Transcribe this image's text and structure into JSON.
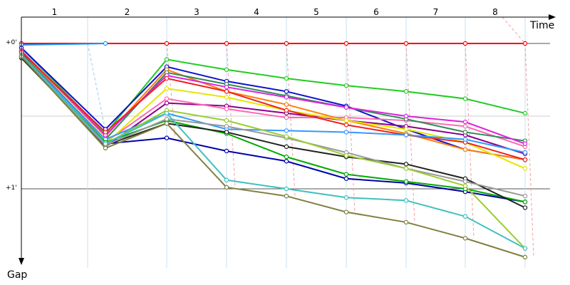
{
  "chart_data": {
    "type": "line",
    "title": "",
    "xlabel": "Time",
    "ylabel": "Gap",
    "laps": [
      "1",
      "2",
      "3",
      "4",
      "5",
      "6",
      "7",
      "8"
    ],
    "x": [
      0,
      1,
      2,
      3,
      4,
      5,
      6,
      7,
      8
    ],
    "y_ticks": [
      {
        "value": 0,
        "label": "+0'"
      },
      {
        "value": 1,
        "label": "+1'"
      }
    ],
    "ylim": [
      -0.2,
      1.5
    ],
    "grid": true,
    "series": [
      {
        "color": "#ff0000",
        "values": [
          0.0,
          null,
          0.0,
          0.0,
          0.0,
          0.0,
          0.0,
          0.0,
          0.0
        ]
      },
      {
        "color": "#1e90ff",
        "values": [
          0.01,
          0.0,
          null,
          null,
          null,
          null,
          null,
          null,
          null
        ]
      },
      {
        "color": "#22cc22",
        "values": [
          0.03,
          0.62,
          0.11,
          0.18,
          0.24,
          0.29,
          0.33,
          0.38,
          0.48
        ]
      },
      {
        "color": "#1010cc",
        "values": [
          0.03,
          0.59,
          0.16,
          0.26,
          0.33,
          0.43,
          0.59,
          0.73,
          0.8
        ]
      },
      {
        "color": "#ff7f0e",
        "values": [
          0.05,
          0.64,
          0.18,
          0.33,
          0.42,
          0.53,
          0.62,
          0.73,
          0.8
        ]
      },
      {
        "color": "#8b008b",
        "values": [
          0.06,
          0.71,
          0.41,
          0.43,
          0.48,
          0.53,
          0.57,
          0.63,
          0.76
        ]
      },
      {
        "color": "#ff69b4",
        "values": [
          0.05,
          0.68,
          0.38,
          0.45,
          0.51,
          0.51,
          0.53,
          0.57,
          0.71
        ]
      },
      {
        "color": "#e6e600",
        "values": [
          0.06,
          0.69,
          0.31,
          0.37,
          0.46,
          0.53,
          0.59,
          0.68,
          0.86
        ]
      },
      {
        "color": "#2e8b57",
        "values": [
          0.07,
          0.66,
          0.2,
          0.28,
          0.36,
          0.44,
          0.52,
          0.61,
          0.67
        ]
      },
      {
        "color": "#dd22dd",
        "values": [
          0.05,
          0.63,
          0.22,
          0.3,
          0.37,
          0.44,
          0.5,
          0.54,
          0.69
        ]
      },
      {
        "color": "#ee2222",
        "values": [
          0.06,
          0.61,
          0.24,
          0.33,
          0.46,
          0.56,
          0.63,
          0.68,
          0.8
        ]
      },
      {
        "color": "#0000aa",
        "values": [
          0.09,
          0.69,
          0.65,
          0.74,
          0.81,
          0.93,
          0.96,
          1.02,
          1.09
        ]
      },
      {
        "color": "#3399ff",
        "values": [
          0.08,
          0.66,
          0.48,
          0.59,
          0.6,
          0.61,
          0.63,
          0.66,
          0.75
        ]
      },
      {
        "color": "#00aa00",
        "values": [
          0.09,
          0.68,
          0.53,
          0.62,
          0.78,
          0.9,
          0.95,
          1.0,
          1.09
        ]
      },
      {
        "color": "#222222",
        "values": [
          0.1,
          0.7,
          0.55,
          0.61,
          0.71,
          0.78,
          0.83,
          0.93,
          1.13
        ]
      },
      {
        "color": "#999999",
        "values": [
          0.09,
          0.7,
          0.52,
          0.57,
          0.65,
          0.75,
          0.86,
          0.95,
          1.05
        ]
      },
      {
        "color": "#9acd32",
        "values": [
          0.08,
          0.69,
          0.46,
          0.53,
          0.64,
          0.77,
          0.86,
          0.98,
          1.41
        ]
      },
      {
        "color": "#40c0c0",
        "values": [
          0.08,
          0.69,
          0.48,
          0.94,
          1.0,
          1.06,
          1.08,
          1.19,
          1.41
        ]
      },
      {
        "color": "#808040",
        "values": [
          0.09,
          0.72,
          0.55,
          0.99,
          1.05,
          1.16,
          1.23,
          1.34,
          1.47
        ]
      }
    ]
  }
}
